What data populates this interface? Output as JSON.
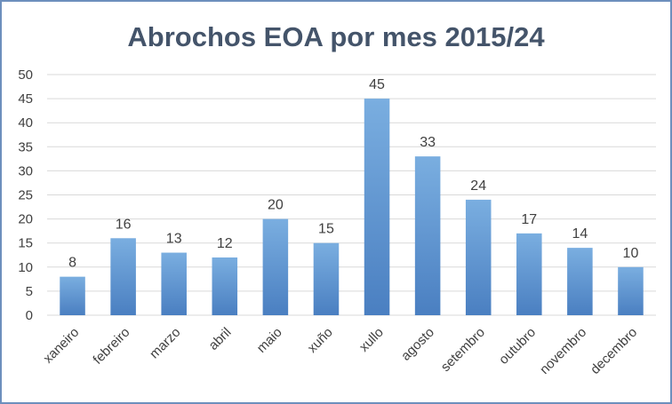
{
  "chart_data": {
    "type": "bar",
    "title": "Abrochos EOA por mes 2015/24",
    "categories": [
      "xaneiro",
      "febreiro",
      "marzo",
      "abril",
      "maio",
      "xuño",
      "xullo",
      "agosto",
      "setembro",
      "outubro",
      "novembro",
      "decembro"
    ],
    "values": [
      8,
      16,
      13,
      12,
      20,
      15,
      45,
      33,
      24,
      17,
      14,
      10
    ],
    "xlabel": "",
    "ylabel": "",
    "ylim": [
      0,
      50
    ],
    "yticks": [
      0,
      5,
      10,
      15,
      20,
      25,
      30,
      35,
      40,
      45,
      50
    ],
    "grid": true,
    "legend": "none",
    "data_labels": true,
    "colors": {
      "bar_top": "#7aaee0",
      "bar_bottom": "#4a7fc1",
      "grid": "#d9d9d9",
      "border": "#6d8fbd",
      "title": "#44546a"
    }
  }
}
